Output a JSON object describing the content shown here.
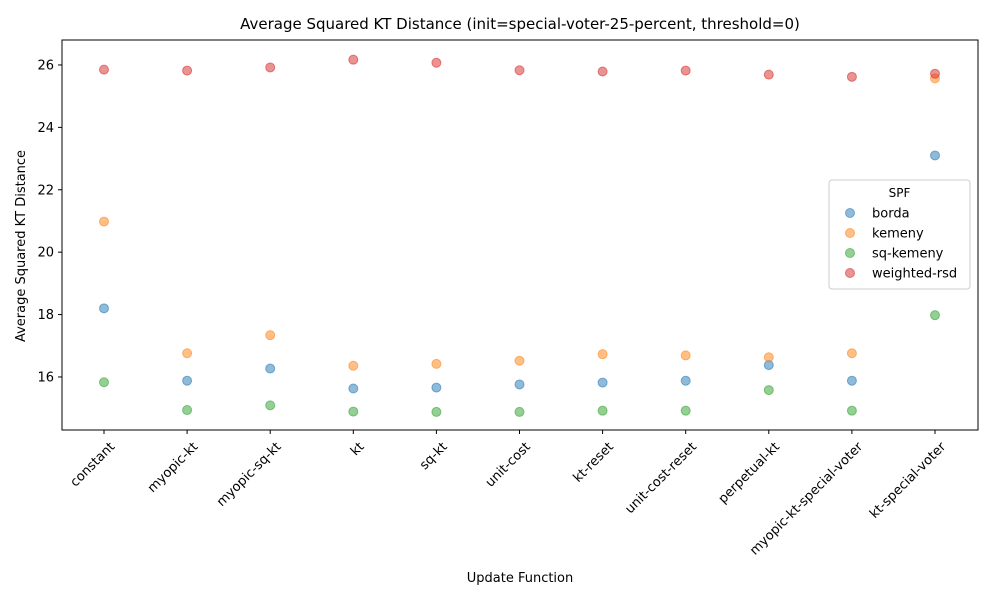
{
  "chart_data": {
    "type": "scatter",
    "title": "Average Squared KT Distance (init=special-voter-25-percent, threshold=0)",
    "xlabel": "Update Function",
    "ylabel": "Average Squared KT Distance",
    "categories": [
      "constant",
      "myopic-kt",
      "myopic-sq-kt",
      "kt",
      "sq-kt",
      "unit-cost",
      "kt-reset",
      "unit-cost-reset",
      "perpetual-kt",
      "myopic-kt-special-voter",
      "kt-special-voter"
    ],
    "yticks": [
      16,
      18,
      20,
      22,
      24,
      26
    ],
    "ylim": [
      14.3,
      26.8
    ],
    "grid": false,
    "legend": {
      "title": "SPF",
      "position": "center-right"
    },
    "series": [
      {
        "name": "borda",
        "color": "#1f77b4",
        "values": [
          18.2,
          15.88,
          16.27,
          15.63,
          15.66,
          15.76,
          15.82,
          15.88,
          16.38,
          15.88,
          23.1
        ]
      },
      {
        "name": "kemeny",
        "color": "#ff7f0e",
        "values": [
          20.98,
          16.76,
          17.34,
          16.36,
          16.42,
          16.52,
          16.73,
          16.69,
          16.63,
          16.76,
          25.57
        ]
      },
      {
        "name": "sq-kemeny",
        "color": "#2ca02c",
        "values": [
          15.83,
          14.94,
          15.09,
          14.89,
          14.88,
          14.88,
          14.92,
          14.92,
          15.58,
          14.92,
          17.98
        ]
      },
      {
        "name": "weighted-rsd",
        "color": "#d62728",
        "values": [
          25.85,
          25.82,
          25.92,
          26.17,
          26.07,
          25.83,
          25.79,
          25.82,
          25.69,
          25.62,
          25.72
        ]
      }
    ]
  }
}
